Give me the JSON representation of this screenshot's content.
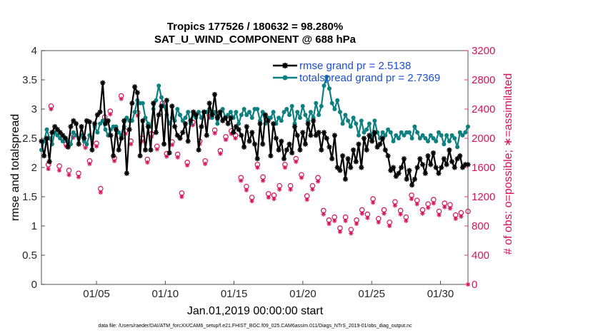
{
  "chart_data": {
    "type": "line",
    "title": "Tropics 177526 / 180632 = 98.280%",
    "subtitle": "SAT_U_WIND_COMPONENT @ 688 hPa",
    "xlabel": "Jan.01,2019 00:00:00 start",
    "ylabel": "rmse and totalspread",
    "y2label": "# of obs: o=possible; ∗=assimilated",
    "xlim": [
      1,
      32
    ],
    "ylim": [
      0,
      4
    ],
    "y2lim": [
      0,
      3200
    ],
    "x_ticks": [
      5,
      10,
      15,
      20,
      25,
      30
    ],
    "x_tick_labels": [
      "01/05",
      "01/10",
      "01/15",
      "01/20",
      "01/25",
      "01/30"
    ],
    "y_ticks": [
      0,
      0.5,
      1,
      1.5,
      2,
      2.5,
      3,
      3.5,
      4
    ],
    "y_tick_labels": [
      "0",
      "0.5",
      "1",
      "1.5",
      "2",
      "2.5",
      "3",
      "3.5",
      "4"
    ],
    "y2_ticks": [
      0,
      400,
      800,
      1200,
      1600,
      2000,
      2400,
      2800,
      3200
    ],
    "y2_tick_labels": [
      "0",
      "400",
      "800",
      "1200",
      "1600",
      "2000",
      "2400",
      "2800",
      "3200"
    ],
    "legend_position": "top-right",
    "grid": false,
    "series": [
      {
        "name": "rmse grand pr = 2.5138",
        "color": "#000000",
        "marker": "asterisk",
        "axis": "left",
        "values": [
          2.45,
          2.2,
          2.5,
          2.1,
          2.6,
          2.7,
          2.65,
          2.6,
          2.55,
          2.5,
          2.35,
          2.7,
          2.8,
          2.75,
          2.4,
          2.7,
          2.5,
          2.8,
          2.78,
          2.3,
          2.75,
          2.9,
          2.95,
          3.45,
          2.75,
          2.8,
          2.55,
          2.2,
          2.65,
          2.3,
          2.5,
          2.8,
          1.9,
          2.65,
          3.1,
          3.38,
          3.28,
          2.2,
          2.8,
          2.3,
          2.7,
          2.3,
          3.1,
          2.6,
          2.9,
          3.05,
          2.4,
          3.15,
          2.25,
          3.05,
          2.7,
          2.55,
          2.5,
          2.6,
          2.75,
          2.45,
          2.8,
          2.95,
          2.9,
          2.3,
          2.7,
          2.95,
          2.55,
          3.1,
          2.9,
          3.25,
          2.85,
          2.95,
          2.8,
          2.85,
          2.75,
          2.85,
          2.6,
          2.7,
          2.65,
          2.55,
          2.35,
          2.7,
          2.45,
          2.6,
          2.4,
          2.15,
          2.75,
          2.4,
          2.9,
          2.8,
          2.2,
          2.75,
          2.5,
          2.3,
          2.45,
          2.15,
          2.3,
          2.4,
          2.25,
          2.7,
          2.55,
          2.3,
          2.6,
          2.4,
          2.75,
          2.55,
          2.8,
          2.55,
          2.6,
          2.3,
          2.6,
          2.5,
          2.35,
          2.15,
          2.55,
          2.0,
          1.95,
          2.2,
          1.8,
          2.15,
          2.0,
          2.3,
          2.1,
          2.4,
          2.0,
          2.5,
          2.3,
          2.55,
          2.45,
          2.6,
          2.35,
          2.4,
          2.5,
          2.3,
          2.2,
          1.95,
          2.0,
          1.85,
          1.9,
          2.0,
          2.15,
          1.8,
          1.95,
          1.7,
          1.8,
          2.0,
          2.15,
          2.05,
          1.9,
          2.2,
          2.05,
          2.25,
          2.0,
          1.9,
          2.0,
          2.15,
          2.05,
          2.3,
          2.1,
          2.0,
          2.15,
          2.2,
          2.0,
          2.05,
          2.05
        ]
      },
      {
        "name": "totalspread grand pr = 2.7369",
        "color": "#0d8080",
        "marker": "dot",
        "axis": "left",
        "values": [
          2.3,
          2.45,
          2.65,
          2.5,
          2.4,
          2.6,
          2.55,
          2.5,
          2.45,
          2.5,
          2.45,
          2.4,
          2.6,
          2.55,
          2.5,
          2.55,
          2.45,
          2.4,
          2.55,
          2.5,
          2.7,
          2.6,
          2.75,
          2.8,
          2.65,
          2.55,
          2.65,
          2.7,
          2.7,
          2.6,
          2.55,
          2.7,
          2.85,
          2.8,
          2.8,
          2.95,
          3.15,
          3.1,
          3.1,
          2.85,
          2.75,
          2.7,
          3.0,
          3.15,
          3.4,
          3.2,
          3.05,
          2.9,
          2.75,
          2.85,
          2.8,
          3.0,
          2.9,
          2.8,
          2.85,
          2.95,
          2.75,
          2.9,
          2.85,
          2.95,
          2.85,
          2.95,
          2.95,
          3.0,
          2.85,
          2.95,
          2.75,
          2.9,
          3.0,
          2.85,
          2.9,
          2.95,
          2.85,
          2.95,
          2.75,
          2.9,
          3.0,
          2.9,
          2.95,
          2.85,
          3.0,
          3.0,
          2.8,
          2.95,
          2.75,
          2.85,
          2.85,
          2.95,
          2.75,
          2.85,
          2.8,
          2.95,
          3.0,
          2.9,
          3.05,
          2.75,
          2.95,
          2.85,
          3.05,
          2.9,
          2.8,
          2.95,
          2.85,
          3.1,
          2.9,
          3.05,
          3.4,
          3.55,
          3.35,
          3.1,
          3.0,
          3.15,
          2.95,
          2.75,
          2.9,
          2.8,
          2.7,
          2.85,
          2.75,
          2.55,
          2.8,
          2.6,
          2.65,
          2.75,
          2.5,
          2.8,
          2.6,
          2.5,
          2.6,
          2.55,
          2.65,
          2.6,
          2.45,
          2.55,
          2.5,
          2.6,
          2.55,
          2.6,
          2.6,
          2.5,
          2.7,
          2.6,
          2.5,
          2.55,
          2.5,
          2.45,
          2.55,
          2.5,
          2.45,
          2.6,
          2.55,
          2.4,
          2.55,
          2.45,
          2.55,
          2.5,
          2.35,
          2.6,
          2.55,
          2.6,
          2.7
        ]
      },
      {
        "name": "possible",
        "color": "#d6135a",
        "marker": "circle",
        "axis": "right",
        "points": [
          [
            1.5,
            1640
          ],
          [
            1.7,
            2440
          ],
          [
            2.3,
            1620
          ],
          [
            2.8,
            1920
          ],
          [
            3.0,
            1560
          ],
          [
            3.3,
            2050
          ],
          [
            3.7,
            1520
          ],
          [
            4.2,
            1910
          ],
          [
            4.5,
            1690
          ],
          [
            5.0,
            1930
          ],
          [
            5.3,
            1310
          ],
          [
            5.6,
            2290
          ],
          [
            6.0,
            2370
          ],
          [
            6.3,
            1730
          ],
          [
            6.8,
            2580
          ],
          [
            7.1,
            2100
          ],
          [
            7.5,
            1960
          ],
          [
            8.0,
            2350
          ],
          [
            8.3,
            2000
          ],
          [
            8.7,
            1710
          ],
          [
            9.0,
            2060
          ],
          [
            9.4,
            1890
          ],
          [
            9.8,
            2480
          ],
          [
            10.1,
            1790
          ],
          [
            10.5,
            1950
          ],
          [
            10.9,
            1780
          ],
          [
            11.2,
            1250
          ],
          [
            11.6,
            1670
          ],
          [
            12.0,
            2220
          ],
          [
            12.5,
            1960
          ],
          [
            12.9,
            1690
          ],
          [
            13.2,
            2320
          ],
          [
            13.6,
            2110
          ],
          [
            14.0,
            1830
          ],
          [
            14.4,
            2020
          ],
          [
            14.8,
            2100
          ],
          [
            15.1,
            2040
          ],
          [
            15.5,
            1460
          ],
          [
            15.9,
            1340
          ],
          [
            16.3,
            1190
          ],
          [
            16.7,
            1640
          ],
          [
            17.1,
            1470
          ],
          [
            17.5,
            1240
          ],
          [
            17.9,
            1220
          ],
          [
            18.3,
            1350
          ],
          [
            18.7,
            1640
          ],
          [
            19.1,
            1350
          ],
          [
            19.5,
            1720
          ],
          [
            19.9,
            1500
          ],
          [
            20.3,
            1210
          ],
          [
            20.7,
            1350
          ],
          [
            21.1,
            1460
          ],
          [
            21.5,
            1010
          ],
          [
            21.9,
            880
          ],
          [
            22.3,
            920
          ],
          [
            22.7,
            770
          ],
          [
            23.1,
            920
          ],
          [
            23.5,
            750
          ],
          [
            23.9,
            880
          ],
          [
            24.3,
            1020
          ],
          [
            24.7,
            960
          ],
          [
            25.1,
            1170
          ],
          [
            25.5,
            900
          ],
          [
            25.9,
            1020
          ],
          [
            26.3,
            850
          ],
          [
            26.7,
            1130
          ],
          [
            27.1,
            1010
          ],
          [
            27.5,
            920
          ],
          [
            27.9,
            1220
          ],
          [
            28.3,
            1150
          ],
          [
            28.7,
            1020
          ],
          [
            29.1,
            1100
          ],
          [
            29.5,
            1160
          ],
          [
            29.9,
            1000
          ],
          [
            30.3,
            1110
          ],
          [
            30.7,
            1090
          ],
          [
            31.1,
            950
          ],
          [
            31.5,
            980
          ],
          [
            32.0,
            1000
          ]
        ]
      },
      {
        "name": "assimilated",
        "color": "#d6135a",
        "marker": "asterisk",
        "axis": "right",
        "points": [
          [
            1.5,
            1580
          ],
          [
            1.7,
            2400
          ],
          [
            2.3,
            1560
          ],
          [
            2.8,
            1890
          ],
          [
            3.0,
            1500
          ],
          [
            3.3,
            2010
          ],
          [
            3.7,
            1470
          ],
          [
            4.2,
            1870
          ],
          [
            4.5,
            1650
          ],
          [
            5.0,
            1890
          ],
          [
            5.3,
            1260
          ],
          [
            5.6,
            2250
          ],
          [
            6.0,
            2330
          ],
          [
            6.3,
            1690
          ],
          [
            6.8,
            2540
          ],
          [
            7.1,
            2060
          ],
          [
            7.5,
            1920
          ],
          [
            8.0,
            2310
          ],
          [
            8.3,
            1960
          ],
          [
            8.7,
            1670
          ],
          [
            9.0,
            2020
          ],
          [
            9.4,
            1850
          ],
          [
            9.8,
            2440
          ],
          [
            10.1,
            1750
          ],
          [
            10.5,
            1910
          ],
          [
            10.9,
            1740
          ],
          [
            11.2,
            1200
          ],
          [
            11.6,
            1630
          ],
          [
            12.0,
            2180
          ],
          [
            12.5,
            1920
          ],
          [
            12.9,
            1650
          ],
          [
            13.2,
            2280
          ],
          [
            13.6,
            2070
          ],
          [
            14.0,
            1790
          ],
          [
            14.4,
            1980
          ],
          [
            14.8,
            2060
          ],
          [
            15.1,
            2000
          ],
          [
            15.5,
            1420
          ],
          [
            15.9,
            1290
          ],
          [
            16.3,
            1140
          ],
          [
            16.7,
            1600
          ],
          [
            17.1,
            1420
          ],
          [
            17.5,
            1190
          ],
          [
            17.9,
            1170
          ],
          [
            18.3,
            1300
          ],
          [
            18.7,
            1600
          ],
          [
            19.1,
            1300
          ],
          [
            19.5,
            1680
          ],
          [
            19.9,
            1460
          ],
          [
            20.3,
            1160
          ],
          [
            20.7,
            1300
          ],
          [
            21.1,
            1410
          ],
          [
            21.5,
            960
          ],
          [
            21.9,
            830
          ],
          [
            22.3,
            870
          ],
          [
            22.7,
            720
          ],
          [
            23.1,
            870
          ],
          [
            23.5,
            700
          ],
          [
            23.9,
            830
          ],
          [
            24.3,
            970
          ],
          [
            24.7,
            910
          ],
          [
            25.1,
            1120
          ],
          [
            25.5,
            850
          ],
          [
            25.9,
            970
          ],
          [
            26.3,
            800
          ],
          [
            26.7,
            1080
          ],
          [
            27.1,
            960
          ],
          [
            27.5,
            870
          ],
          [
            27.9,
            1170
          ],
          [
            28.3,
            1100
          ],
          [
            28.7,
            970
          ],
          [
            29.1,
            1050
          ],
          [
            29.5,
            1110
          ],
          [
            29.9,
            950
          ],
          [
            30.3,
            1060
          ],
          [
            30.7,
            1040
          ],
          [
            31.1,
            900
          ],
          [
            31.5,
            930
          ],
          [
            32.0,
            0
          ]
        ]
      }
    ]
  },
  "footer": "data file: /Users/raeder/DAI/ATM_forcXX/CAM6_setup/f.e21.FHIST_BGC.f09_025.CAM6assim.011/Diags_NTrS_2019-01/obs_diag_output.nc"
}
